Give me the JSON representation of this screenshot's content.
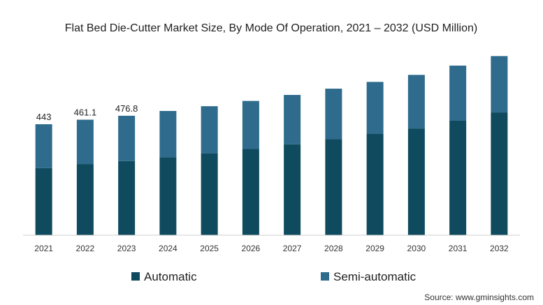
{
  "chart_data": {
    "type": "bar",
    "stacked": true,
    "title": "Flat Bed Die-Cutter Market Size, By Mode Of Operation, 2021 – 2032 (USD Million)",
    "xlabel": "",
    "ylabel": "",
    "categories": [
      "2021",
      "2022",
      "2023",
      "2024",
      "2025",
      "2026",
      "2027",
      "2028",
      "2029",
      "2030",
      "2031",
      "2032"
    ],
    "series": [
      {
        "name": "Automatic",
        "color": "#0f4a5e",
        "values": [
          268,
          284,
          296,
          311,
          327,
          344,
          363,
          383,
          404,
          426,
          457,
          489
        ]
      },
      {
        "name": "Semi-automatic",
        "color": "#2e6b8c",
        "values": [
          175,
          177.1,
          180.8,
          185,
          188,
          192,
          197,
          202,
          208,
          214,
          220,
          226
        ]
      }
    ],
    "data_labels": [
      {
        "category": "2021",
        "text": "443"
      },
      {
        "category": "2022",
        "text": "461.1"
      },
      {
        "category": "2023",
        "text": "476.8"
      }
    ],
    "ylim": [
      0,
      730
    ],
    "grid": false,
    "legend_position": "bottom"
  },
  "source": "Source: www.gminsights.com"
}
